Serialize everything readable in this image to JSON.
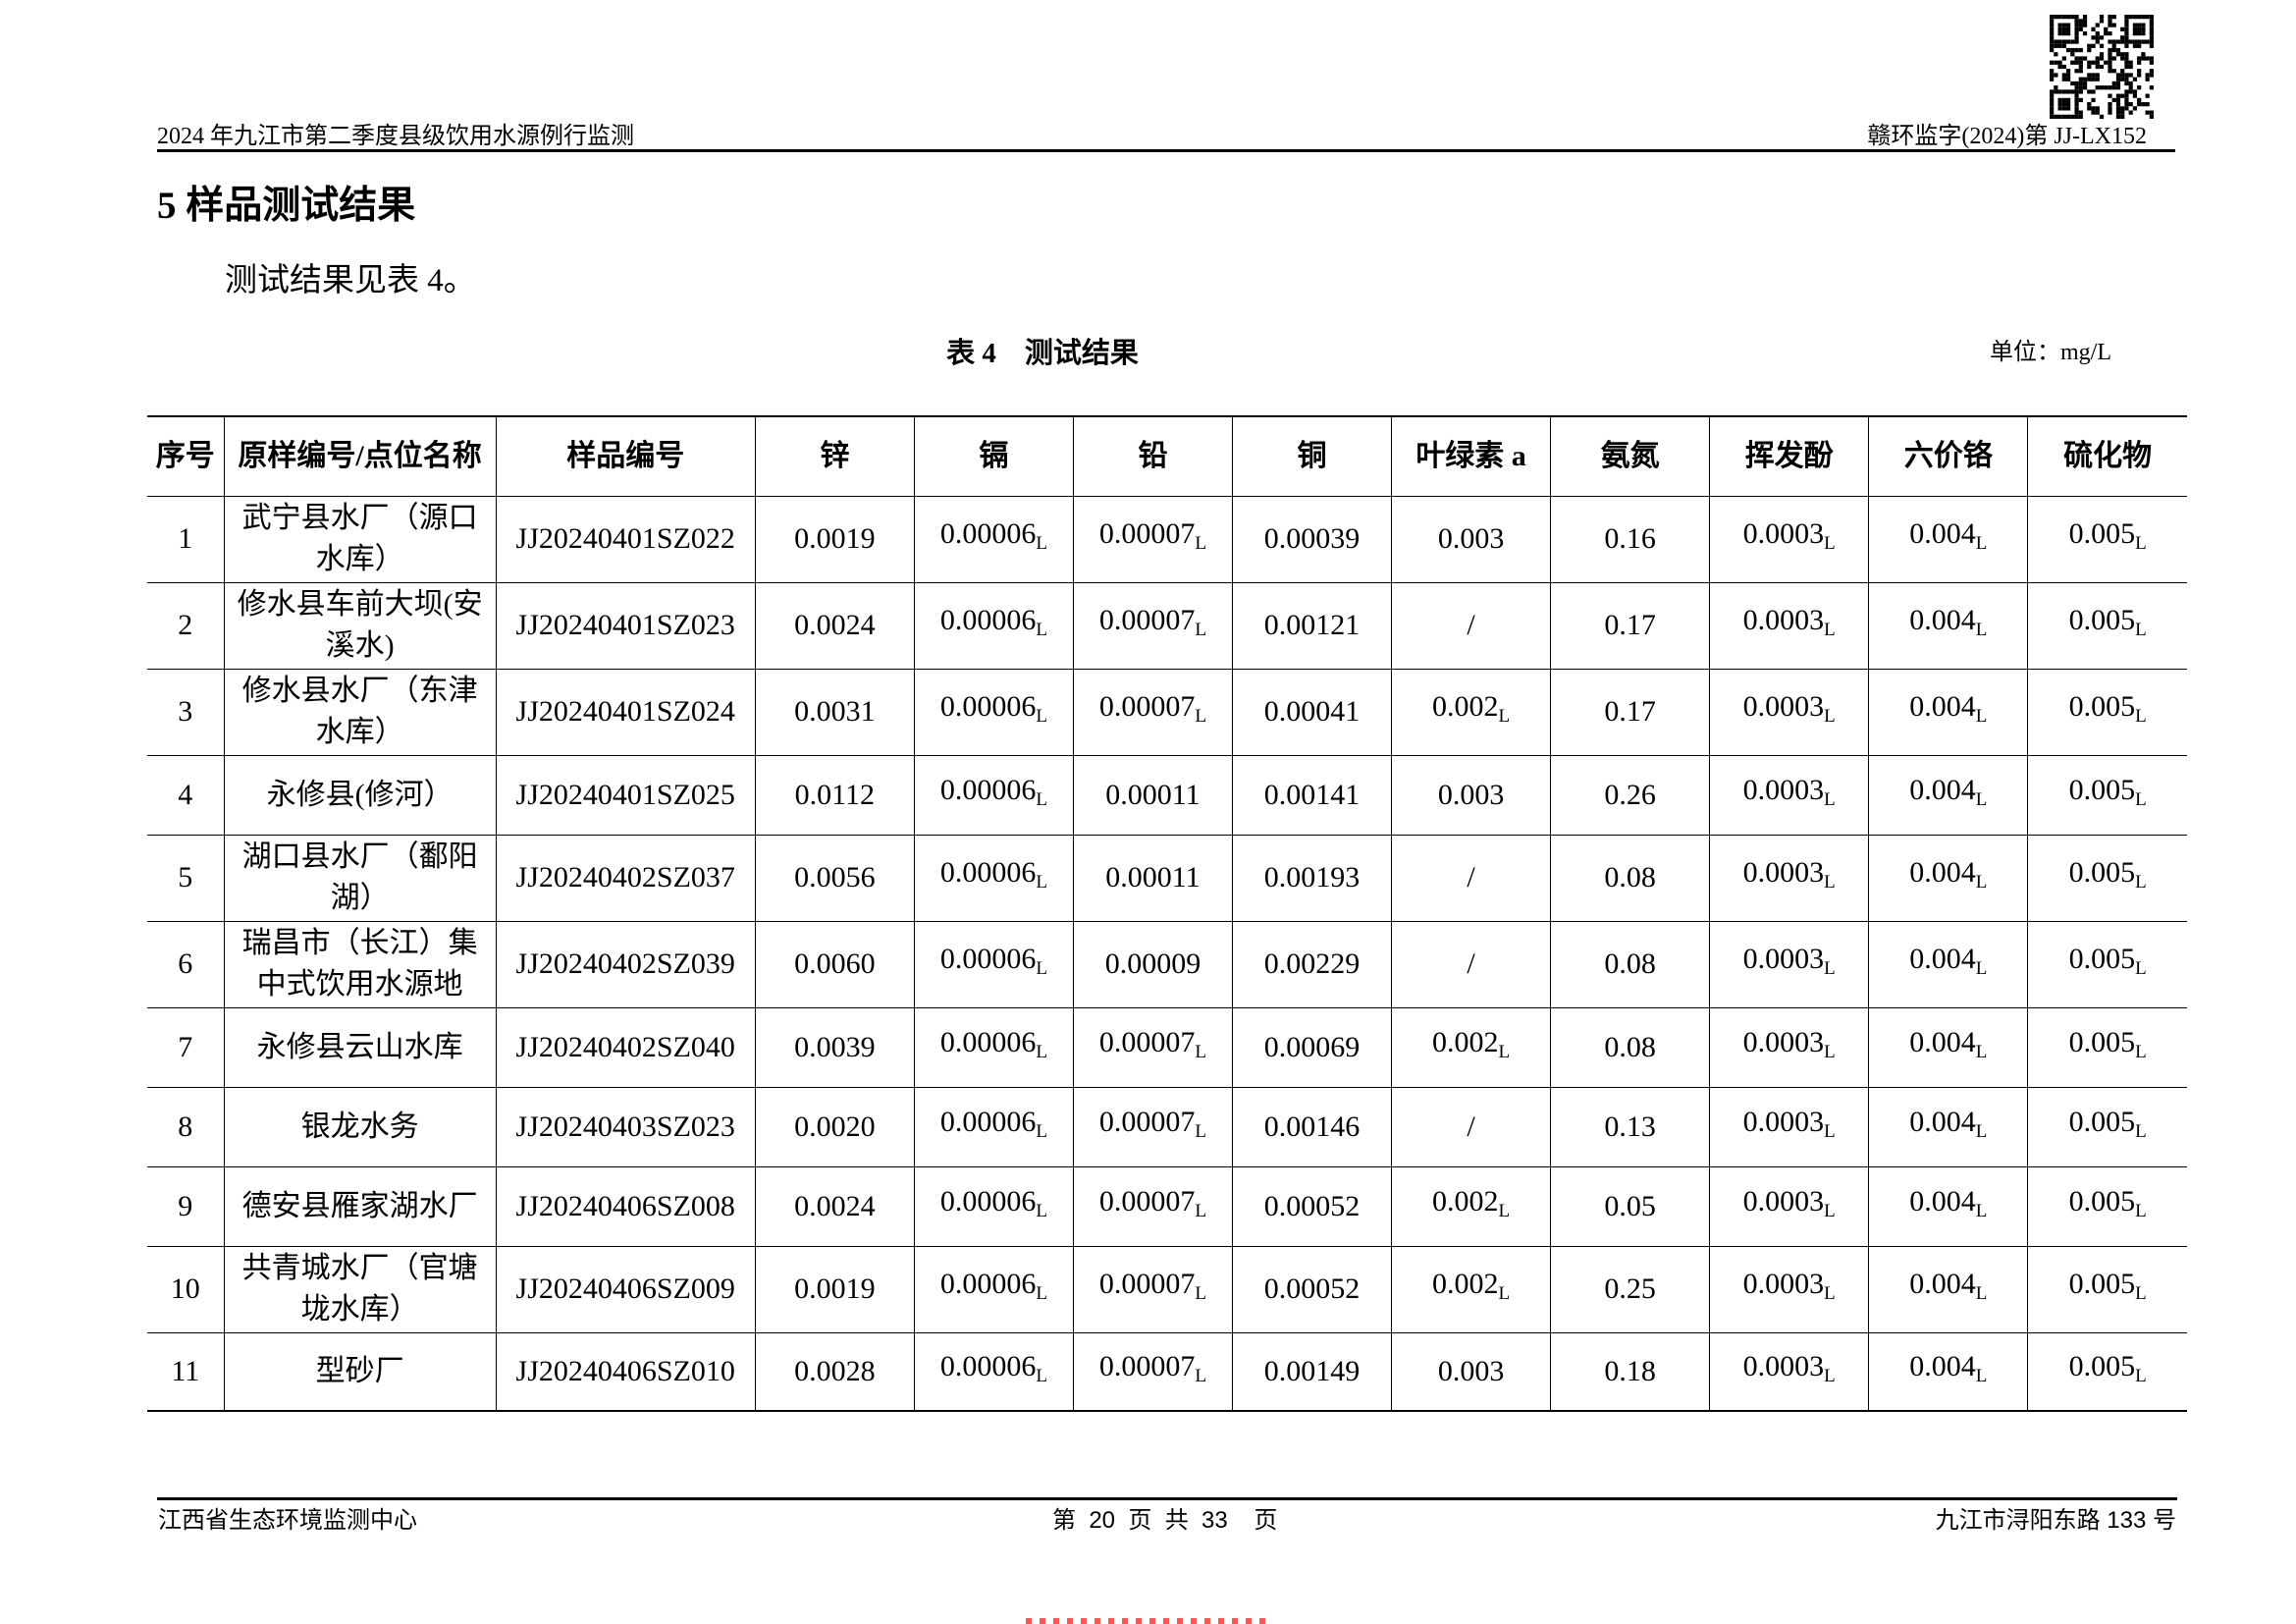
{
  "header": {
    "left": "2024 年九江市第二季度县级饮用水源例行监测",
    "right": "赣环监字(2024)第 JJ-LX152"
  },
  "section_title": "5 样品测试结果",
  "paragraph": "测试结果见表 4。",
  "table": {
    "caption": "表 4　测试结果",
    "unit": "单位：mg/L",
    "headers": [
      "序号",
      "原样编号/点位名称",
      "样品编号",
      "锌",
      "镉",
      "铅",
      "铜",
      "叶绿素 a",
      "氨氮",
      "挥发酚",
      "六价铬",
      "硫化物"
    ],
    "rows": [
      [
        "1",
        "武宁县水厂（源口水库）",
        "JJ20240401SZ022",
        "0.0019",
        "0.00006L",
        "0.00007L",
        "0.00039",
        "0.003",
        "0.16",
        "0.0003L",
        "0.004L",
        "0.005L"
      ],
      [
        "2",
        "修水县车前大坝(安溪水)",
        "JJ20240401SZ023",
        "0.0024",
        "0.00006L",
        "0.00007L",
        "0.00121",
        "/",
        "0.17",
        "0.0003L",
        "0.004L",
        "0.005L"
      ],
      [
        "3",
        "修水县水厂（东津水库）",
        "JJ20240401SZ024",
        "0.0031",
        "0.00006L",
        "0.00007L",
        "0.00041",
        "0.002L",
        "0.17",
        "0.0003L",
        "0.004L",
        "0.005L"
      ],
      [
        "4",
        "永修县(修河）",
        "JJ20240401SZ025",
        "0.0112",
        "0.00006L",
        "0.00011",
        "0.00141",
        "0.003",
        "0.26",
        "0.0003L",
        "0.004L",
        "0.005L"
      ],
      [
        "5",
        "湖口县水厂（鄱阳湖）",
        "JJ20240402SZ037",
        "0.0056",
        "0.00006L",
        "0.00011",
        "0.00193",
        "/",
        "0.08",
        "0.0003L",
        "0.004L",
        "0.005L"
      ],
      [
        "6",
        "瑞昌市（长江）集中式饮用水源地",
        "JJ20240402SZ039",
        "0.0060",
        "0.00006L",
        "0.00009",
        "0.00229",
        "/",
        "0.08",
        "0.0003L",
        "0.004L",
        "0.005L"
      ],
      [
        "7",
        "永修县云山水库",
        "JJ20240402SZ040",
        "0.0039",
        "0.00006L",
        "0.00007L",
        "0.00069",
        "0.002L",
        "0.08",
        "0.0003L",
        "0.004L",
        "0.005L"
      ],
      [
        "8",
        "银龙水务",
        "JJ20240403SZ023",
        "0.0020",
        "0.00006L",
        "0.00007L",
        "0.00146",
        "/",
        "0.13",
        "0.0003L",
        "0.004L",
        "0.005L"
      ],
      [
        "9",
        "德安县雁家湖水厂",
        "JJ20240406SZ008",
        "0.0024",
        "0.00006L",
        "0.00007L",
        "0.00052",
        "0.002L",
        "0.05",
        "0.0003L",
        "0.004L",
        "0.005L"
      ],
      [
        "10",
        "共青城水厂（官塘垅水库）",
        "JJ20240406SZ009",
        "0.0019",
        "0.00006L",
        "0.00007L",
        "0.00052",
        "0.002L",
        "0.25",
        "0.0003L",
        "0.004L",
        "0.005L"
      ],
      [
        "11",
        "型砂厂",
        "JJ20240406SZ010",
        "0.0028",
        "0.00006L",
        "0.00007L",
        "0.00149",
        "0.003",
        "0.18",
        "0.0003L",
        "0.004L",
        "0.005L"
      ]
    ]
  },
  "footer": {
    "left": "江西省生态环境监测中心",
    "center": "第  20  页  共  33    页",
    "right": "九江市浔阳东路 133 号"
  }
}
